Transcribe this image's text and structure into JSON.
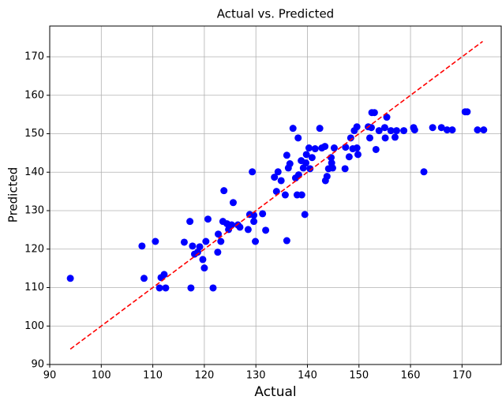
{
  "chart_data": {
    "type": "scatter",
    "title": "Actual vs. Predicted",
    "x_label": "Actual",
    "y_label": "Predicted",
    "xlim": [
      90,
      177.6
    ],
    "ylim": [
      90,
      178
    ],
    "xticks": [
      90,
      100,
      110,
      120,
      130,
      140,
      150,
      160,
      170
    ],
    "yticks": [
      90,
      100,
      110,
      120,
      130,
      140,
      150,
      160,
      170
    ],
    "grid": true,
    "series": [
      {
        "type": "scatter",
        "color": "#0000ff",
        "x": [
          94.0,
          107.9,
          108.3,
          110.5,
          111.3,
          111.6,
          112.2,
          112.5,
          116.1,
          117.2,
          117.4,
          117.7,
          118.1,
          118.7,
          119.1,
          119.7,
          120.0,
          120.3,
          120.7,
          121.7,
          122.6,
          122.7,
          123.2,
          123.6,
          123.8,
          124.4,
          124.7,
          125.3,
          125.6,
          126.5,
          126.9,
          128.5,
          128.8,
          129.3,
          129.6,
          129.6,
          129.9,
          131.3,
          131.9,
          133.6,
          134.0,
          134.3,
          134.9,
          135.7,
          136.0,
          136.0,
          136.3,
          136.6,
          137.2,
          137.7,
          138.0,
          138.2,
          138.3,
          138.8,
          138.9,
          139.2,
          139.5,
          139.7,
          139.8,
          140.3,
          140.5,
          140.9,
          141.5,
          142.4,
          142.8,
          143.4,
          143.5,
          143.8,
          144.1,
          144.6,
          144.7,
          144.9,
          145.2,
          147.3,
          147.4,
          148.1,
          148.4,
          148.8,
          149.1,
          149.6,
          149.8,
          149.6,
          151.8,
          152.1,
          152.4,
          152.5,
          153.0,
          153.3,
          153.9,
          155.0,
          155.1,
          155.4,
          156.2,
          157.0,
          157.3,
          158.7,
          160.6,
          160.8,
          162.6,
          164.3,
          166.0,
          167.1,
          168.1,
          170.6,
          171.0,
          173.0,
          174.2
        ],
        "values": [
          112.4,
          120.8,
          112.4,
          122.0,
          109.9,
          112.6,
          113.4,
          109.9,
          121.8,
          127.2,
          109.9,
          120.8,
          118.7,
          119.2,
          120.6,
          117.3,
          115.1,
          122.0,
          127.8,
          109.9,
          119.2,
          123.9,
          122.0,
          127.2,
          135.2,
          126.6,
          125.1,
          126.3,
          132.1,
          126.3,
          125.7,
          125.1,
          129.0,
          140.1,
          128.8,
          127.2,
          122.0,
          129.2,
          124.9,
          138.7,
          135.0,
          140.1,
          137.8,
          134.1,
          144.4,
          122.2,
          141.1,
          142.2,
          151.4,
          138.5,
          134.1,
          148.9,
          139.3,
          143.0,
          134.1,
          141.1,
          129.0,
          142.4,
          144.6,
          146.3,
          140.9,
          143.8,
          146.1,
          151.4,
          146.3,
          146.7,
          137.8,
          138.9,
          140.9,
          143.8,
          142.4,
          141.1,
          146.3,
          140.9,
          146.5,
          144.0,
          148.9,
          146.1,
          150.8,
          151.8,
          144.6,
          146.3,
          151.8,
          148.9,
          151.6,
          155.5,
          155.5,
          145.9,
          150.8,
          151.6,
          148.9,
          154.3,
          150.8,
          149.1,
          150.8,
          150.8,
          151.6,
          151.0,
          140.1,
          151.6,
          151.6,
          151.0,
          151.0,
          155.7,
          155.7,
          151.0,
          151.0
        ]
      },
      {
        "type": "line",
        "color": "#ff0000",
        "dashed": true,
        "x": [
          94,
          174
        ],
        "values": [
          94,
          174
        ]
      }
    ]
  }
}
